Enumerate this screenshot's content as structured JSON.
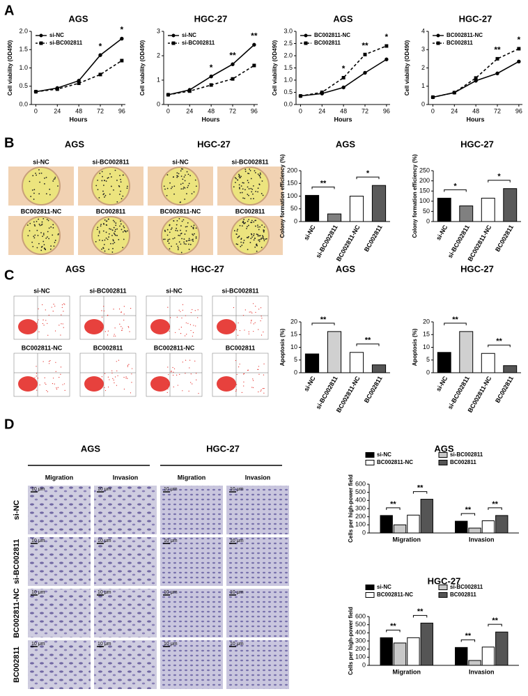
{
  "panel_labels": [
    "A",
    "B",
    "C",
    "D"
  ],
  "colony": [
    {
      "title": "AGS",
      "items": [
        "si-NC",
        "si-BC002811",
        "BC002811-NC",
        "BC002811"
      ]
    },
    {
      "title": "HGC-27",
      "items": [
        "si-NC",
        "si-BC002811",
        "BC002811-NC",
        "BC002811"
      ]
    }
  ],
  "flow": [
    {
      "title": "AGS",
      "items": [
        "si-NC",
        "si-BC002811",
        "BC002811-NC",
        "BC002811"
      ]
    },
    {
      "title": "HGC-27",
      "items": [
        "si-NC",
        "si-BC002811",
        "BC002811-NC",
        "BC002811"
      ]
    }
  ],
  "transwell": {
    "cell_lines": [
      "AGS",
      "HGC-27"
    ],
    "assays": [
      "Migration",
      "Invasion"
    ],
    "rows": [
      "si-NC",
      "si-BC002811",
      "BC002811-NC",
      "BC002811"
    ],
    "scale_bar": "10 μm"
  },
  "chart_data": [
    {
      "type": "line",
      "title": "AGS",
      "xlabel": "Hours",
      "ylabel": "Cell viability (OD490)",
      "legend": "upper-left",
      "x": [
        0,
        24,
        48,
        72,
        96
      ],
      "xlim": [
        -5,
        100
      ],
      "xticks": [
        0,
        24,
        48,
        72,
        96
      ],
      "ylim": [
        0,
        2
      ],
      "yticks": [
        {
          "value": 0,
          "label": "0.0"
        },
        0.5,
        {
          "value": 1,
          "label": "1.0"
        },
        1.5,
        {
          "value": 2,
          "label": "2.0"
        }
      ],
      "series": [
        {
          "name": "si-NC",
          "color": "#000000",
          "marker": "circle",
          "dash": false,
          "values": [
            0.35,
            0.45,
            0.65,
            1.35,
            1.8
          ]
        },
        {
          "name": "si-BC002811",
          "color": "#000000",
          "marker": "square",
          "dash": true,
          "values": [
            0.35,
            0.42,
            0.58,
            0.82,
            1.2
          ]
        }
      ],
      "annotations": [
        {
          "text": "*",
          "x": 72
        },
        {
          "text": "*",
          "x": 96
        }
      ]
    },
    {
      "type": "line",
      "title": "HGC-27",
      "xlabel": "Hours",
      "ylabel": "Cell viability (OD490)",
      "legend": "upper-left",
      "x": [
        0,
        24,
        48,
        72,
        96
      ],
      "xlim": [
        -5,
        100
      ],
      "xticks": [
        0,
        24,
        48,
        72,
        96
      ],
      "ylim": [
        0,
        3
      ],
      "yticks": [
        0,
        1,
        2,
        3
      ],
      "series": [
        {
          "name": "si-NC",
          "color": "#000000",
          "marker": "circle",
          "dash": false,
          "values": [
            0.4,
            0.6,
            1.15,
            1.65,
            2.45
          ]
        },
        {
          "name": "si-BC002811",
          "color": "#000000",
          "marker": "square",
          "dash": true,
          "values": [
            0.4,
            0.55,
            0.8,
            1.05,
            1.6
          ]
        }
      ],
      "annotations": [
        {
          "text": "*",
          "x": 48
        },
        {
          "text": "**",
          "x": 72
        },
        {
          "text": "**",
          "x": 96
        }
      ]
    },
    {
      "type": "line",
      "title": "AGS",
      "xlabel": "Hours",
      "ylabel": "Cell viability (OD490)",
      "legend": "upper-left",
      "x": [
        0,
        24,
        48,
        72,
        96
      ],
      "xlim": [
        -5,
        100
      ],
      "xticks": [
        0,
        24,
        48,
        72,
        96
      ],
      "ylim": [
        0,
        3
      ],
      "yticks": [
        {
          "value": 0,
          "label": "0.0"
        },
        0.5,
        {
          "value": 1,
          "label": "1.0"
        },
        1.5,
        {
          "value": 2,
          "label": "2.0"
        },
        2.5,
        {
          "value": 3,
          "label": "3.0"
        }
      ],
      "series": [
        {
          "name": "BC002811-NC",
          "color": "#000000",
          "marker": "circle",
          "dash": false,
          "values": [
            0.35,
            0.45,
            0.7,
            1.3,
            1.85
          ]
        },
        {
          "name": "BC002811",
          "color": "#000000",
          "marker": "square",
          "dash": true,
          "values": [
            0.35,
            0.5,
            1.1,
            2.05,
            2.4
          ]
        }
      ],
      "annotations": [
        {
          "text": "*",
          "x": 48
        },
        {
          "text": "**",
          "x": 72
        },
        {
          "text": "*",
          "x": 96
        }
      ]
    },
    {
      "type": "line",
      "title": "HGC-27",
      "xlabel": "Hours",
      "ylabel": "Cell viability (OD490)",
      "legend": "upper-left",
      "x": [
        0,
        24,
        48,
        72,
        96
      ],
      "xlim": [
        -5,
        100
      ],
      "xticks": [
        0,
        24,
        48,
        72,
        96
      ],
      "ylim": [
        0,
        4
      ],
      "yticks": [
        0,
        1,
        2,
        3,
        4
      ],
      "series": [
        {
          "name": "BC002811-NC",
          "color": "#000000",
          "marker": "circle",
          "dash": false,
          "values": [
            0.4,
            0.65,
            1.3,
            1.7,
            2.35
          ]
        },
        {
          "name": "BC002811",
          "color": "#000000",
          "marker": "square",
          "dash": true,
          "values": [
            0.4,
            0.65,
            1.45,
            2.5,
            3.05
          ]
        }
      ],
      "annotations": [
        {
          "text": "**",
          "x": 72
        },
        {
          "text": "*",
          "x": 96
        }
      ]
    },
    {
      "type": "bar",
      "title": "AGS",
      "ylabel": "Colony formation efficiency (%)",
      "categories": [
        "si-NC",
        "si-BC002811",
        "BC002811-NC",
        "BC002811"
      ],
      "values": [
        103,
        30,
        100,
        142
      ],
      "colors": [
        "#000000",
        "#808080",
        "#ffffff",
        "#5a5a5a"
      ],
      "ylim": [
        0,
        200
      ],
      "yticks": [
        0,
        50,
        100,
        150,
        200
      ],
      "annotations": [
        {
          "text": "**",
          "between": [
            "si-NC",
            "si-BC002811"
          ]
        },
        {
          "text": "*",
          "between": [
            "BC002811-NC",
            "BC002811"
          ]
        }
      ]
    },
    {
      "type": "bar",
      "title": "HGC-27",
      "ylabel": "Colony formation efficiency (%)",
      "categories": [
        "si-NC",
        "si-BC002811",
        "BC002811-NC",
        "BC002811"
      ],
      "values": [
        115,
        77,
        115,
        162
      ],
      "colors": [
        "#000000",
        "#808080",
        "#ffffff",
        "#5a5a5a"
      ],
      "ylim": [
        0,
        250
      ],
      "yticks": [
        0,
        50,
        100,
        150,
        200,
        250
      ],
      "annotations": [
        {
          "text": "*",
          "between": [
            "si-NC",
            "si-BC002811"
          ]
        },
        {
          "text": "*",
          "between": [
            "BC002811-NC",
            "BC002811"
          ]
        }
      ]
    },
    {
      "type": "bar",
      "title": "AGS",
      "ylabel": "Apoptosis (%)",
      "categories": [
        "si-NC",
        "si-BC002811",
        "BC002811-NC",
        "BC002811"
      ],
      "values": [
        7.4,
        16.2,
        8.0,
        3.1
      ],
      "colors": [
        "#000000",
        "#d0d0d0",
        "#ffffff",
        "#555555"
      ],
      "ylim": [
        0,
        20
      ],
      "yticks": [
        0,
        5,
        10,
        15,
        20
      ],
      "annotations": [
        {
          "text": "**",
          "between": [
            "si-NC",
            "si-BC002811"
          ]
        },
        {
          "text": "**",
          "between": [
            "BC002811-NC",
            "BC002811"
          ]
        }
      ]
    },
    {
      "type": "bar",
      "title": "HGC-27",
      "ylabel": "Apoptosis (%)",
      "categories": [
        "si-NC",
        "si-BC002811",
        "BC002811-NC",
        "BC002811"
      ],
      "values": [
        8.0,
        16.2,
        7.6,
        2.8
      ],
      "colors": [
        "#000000",
        "#d0d0d0",
        "#ffffff",
        "#555555"
      ],
      "ylim": [
        0,
        20
      ],
      "yticks": [
        0,
        5,
        10,
        15,
        20
      ],
      "annotations": [
        {
          "text": "**",
          "between": [
            "si-NC",
            "si-BC002811"
          ]
        },
        {
          "text": "**",
          "between": [
            "BC002811-NC",
            "BC002811"
          ]
        }
      ]
    },
    {
      "type": "bar",
      "title": "AGS",
      "ylabel": "Cells per high-power field",
      "legend": "top",
      "categories": [
        "Migration",
        "Invasion"
      ],
      "ylim": [
        0,
        600
      ],
      "yticks": [
        0,
        100,
        200,
        300,
        400,
        500,
        600
      ],
      "series": [
        {
          "name": "si-NC",
          "color": "#000000",
          "values": [
            215,
            145
          ]
        },
        {
          "name": "si-BC002811",
          "color": "#c8c8c8",
          "values": [
            100,
            60
          ]
        },
        {
          "name": "BC002811-NC",
          "color": "#ffffff",
          "values": [
            220,
            150
          ]
        },
        {
          "name": "BC002811",
          "color": "#555555",
          "values": [
            415,
            215
          ]
        }
      ],
      "annotations": [
        {
          "text": "**",
          "category": "Migration",
          "between": [
            "si-NC",
            "si-BC002811"
          ]
        },
        {
          "text": "**",
          "category": "Migration",
          "between": [
            "BC002811-NC",
            "BC002811"
          ]
        },
        {
          "text": "**",
          "category": "Invasion",
          "between": [
            "si-NC",
            "si-BC002811"
          ]
        },
        {
          "text": "**",
          "category": "Invasion",
          "between": [
            "BC002811-NC",
            "BC002811"
          ]
        }
      ]
    },
    {
      "type": "bar",
      "title": "HGC-27",
      "ylabel": "Cells per high-power field",
      "legend": "top",
      "categories": [
        "Migration",
        "Invasion"
      ],
      "ylim": [
        0,
        600
      ],
      "yticks": [
        0,
        100,
        200,
        300,
        400,
        500,
        600
      ],
      "series": [
        {
          "name": "si-NC",
          "color": "#000000",
          "values": [
            340,
            220
          ]
        },
        {
          "name": "si-BC002811",
          "color": "#c8c8c8",
          "values": [
            275,
            60
          ]
        },
        {
          "name": "BC002811-NC",
          "color": "#ffffff",
          "values": [
            340,
            225
          ]
        },
        {
          "name": "BC002811",
          "color": "#555555",
          "values": [
            520,
            410
          ]
        }
      ],
      "annotations": [
        {
          "text": "**",
          "category": "Migration",
          "between": [
            "si-NC",
            "si-BC002811"
          ]
        },
        {
          "text": "**",
          "category": "Migration",
          "between": [
            "BC002811-NC",
            "BC002811"
          ]
        },
        {
          "text": "**",
          "category": "Invasion",
          "between": [
            "si-NC",
            "si-BC002811"
          ]
        },
        {
          "text": "**",
          "category": "Invasion",
          "between": [
            "BC002811-NC",
            "BC002811"
          ]
        }
      ]
    }
  ]
}
